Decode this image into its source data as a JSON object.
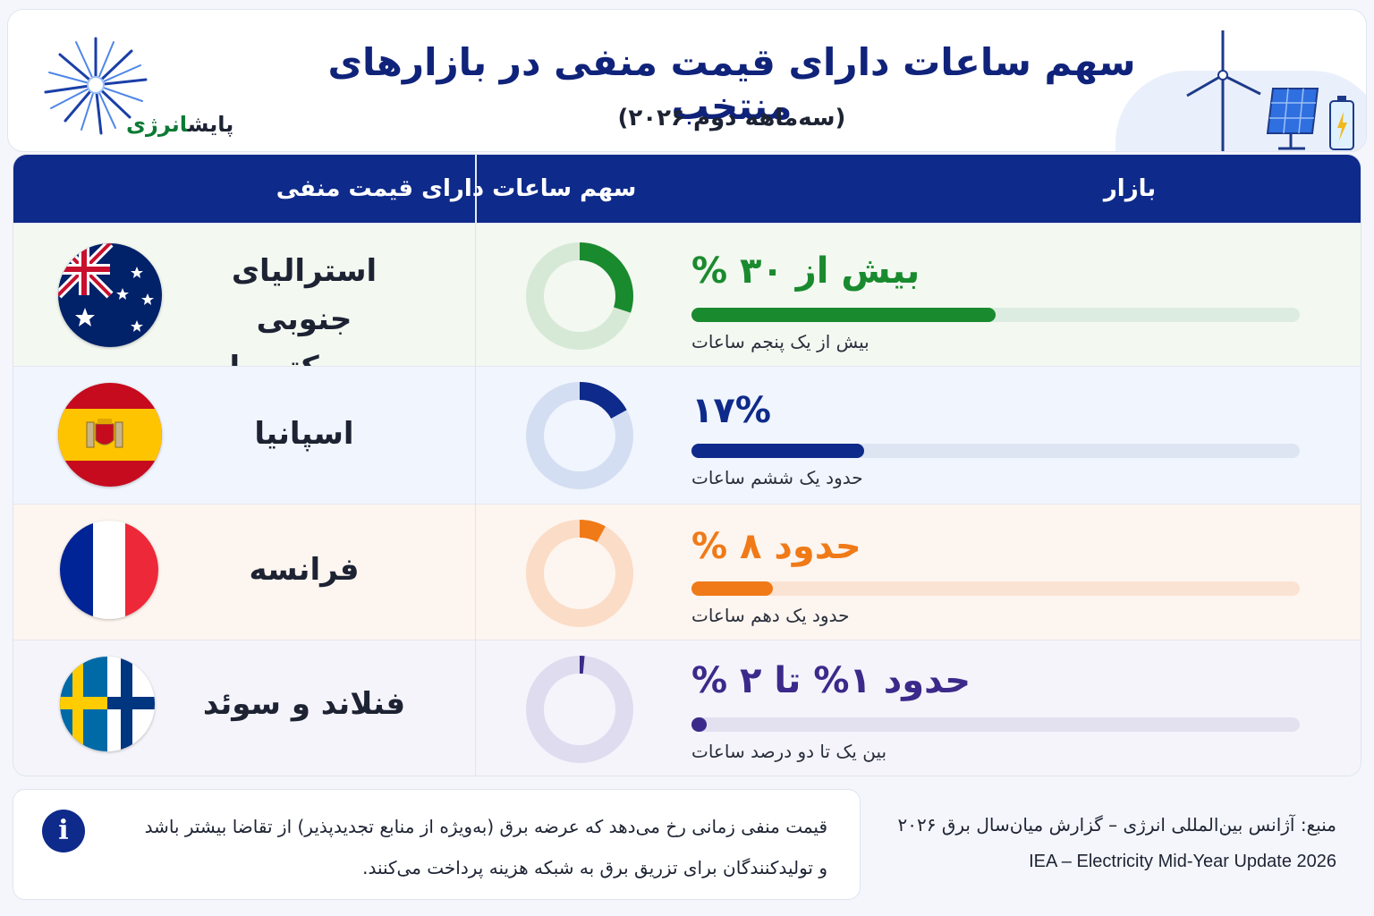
{
  "header": {
    "title": "سهم ساعات دارای قیمت منفی در بازارهای منتخب",
    "subtitle": "(سه‌ماهه دوم ۲۰۲۶)",
    "logo_part1": "پایش",
    "logo_part2": "انرژی"
  },
  "table": {
    "col_market": "بازار",
    "col_share": "سهم ساعات دارای قیمت منفی"
  },
  "colors": {
    "navy": "#0e2a8a",
    "green": "#1a8a2e",
    "blue": "#0e2a8a",
    "orange": "#f07a18",
    "purple": "#3c2a8a"
  },
  "chart_data": {
    "type": "bar",
    "categories": [
      "استرالیای جنوبی و ویکتوریا",
      "اسپانیا",
      "فرانسه",
      "فنلاند و سوئد"
    ],
    "values": [
      30,
      17,
      8,
      1.5
    ],
    "value_labels": [
      "بیش از ۳۰ %",
      "۱۷%",
      "حدود ۸ %",
      "حدود ۱% تا ۲ %"
    ],
    "notes": [
      "بیش از یک پنجم ساعات",
      "حدود یک ششم ساعات",
      "حدود یک دهم ساعات",
      "بین یک تا دو درصد ساعات"
    ],
    "ylim": [
      0,
      60
    ]
  },
  "rows": [
    {
      "name_line1": "استرالیای جنوبی",
      "name_line2": "و ویکتوریا",
      "flag": "australia-flag"
    },
    {
      "name_line1": "اسپانیا",
      "name_line2": "",
      "flag": "spain-flag"
    },
    {
      "name_line1": "فرانسه",
      "name_line2": "",
      "flag": "france-flag"
    },
    {
      "name_line1": "فنلاند و سوئد",
      "name_line2": "",
      "flag": "finland-sweden-flag"
    }
  ],
  "footer": {
    "info_line1": "قیمت منفی زمانی رخ می‌دهد که عرضه برق (به‌ویژه از منابع تجدیدپذیر) از تقاضا بیشتر باشد",
    "info_line2": "و تولیدکنندگان برای تزریق برق به شبکه هزینه پرداخت می‌کنند.",
    "source_fa": "منبع: آژانس بین‌المللی انرژی – گزارش میان‌سال برق ۲۰۲۶",
    "source_en": "IEA – Electricity Mid-Year Update 2026"
  }
}
